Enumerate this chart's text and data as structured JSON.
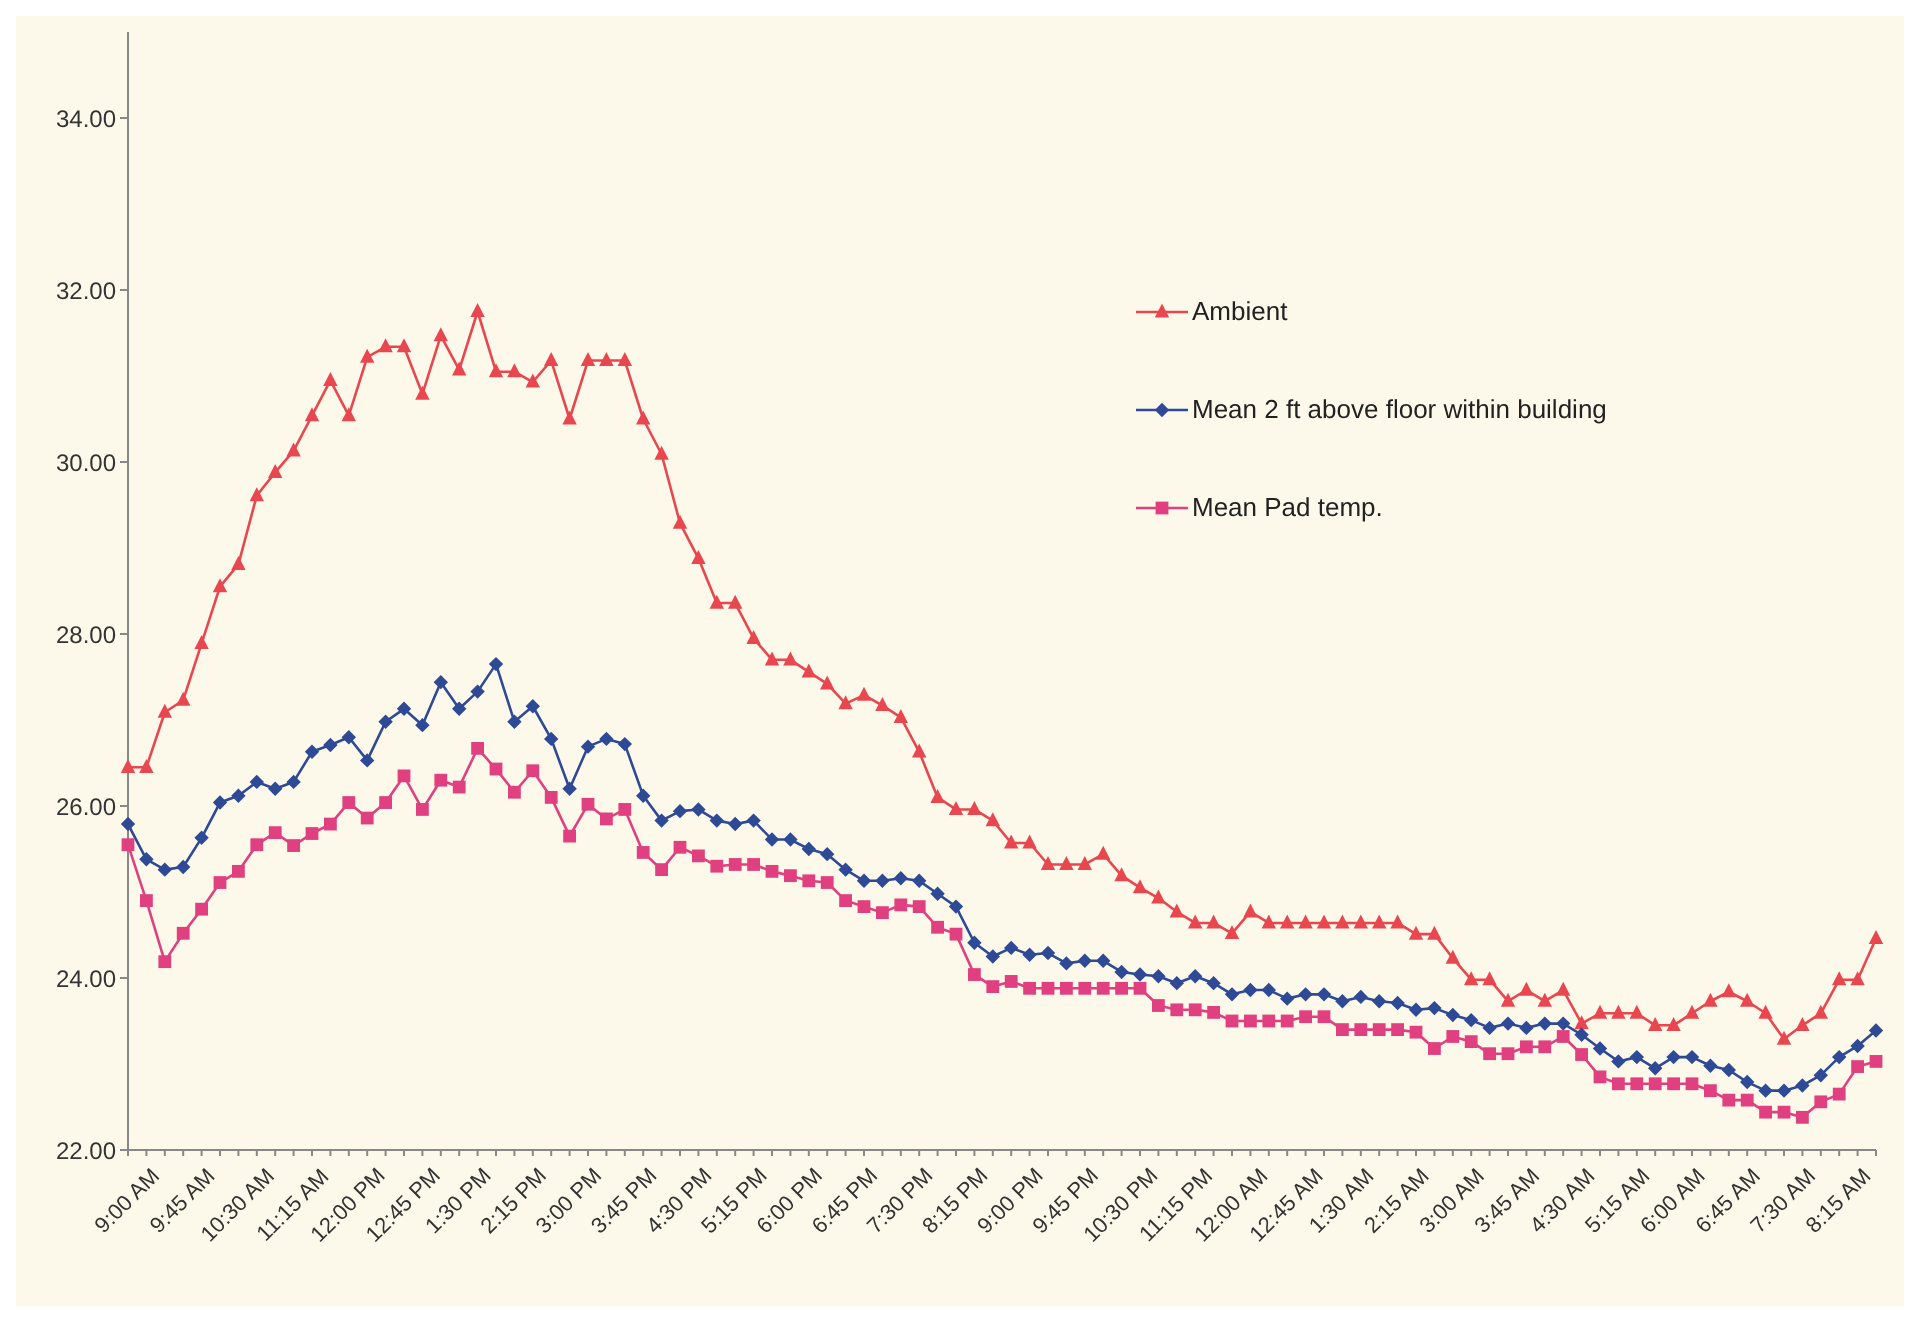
{
  "chart_data": {
    "type": "line",
    "categories": [
      "9:00 AM",
      null,
      null,
      "9:45 AM",
      null,
      null,
      "10:30 AM",
      null,
      null,
      "11:15 AM",
      null,
      null,
      "12:00 PM",
      null,
      null,
      "12:45 PM",
      null,
      null,
      "1:30 PM",
      null,
      null,
      "2:15 PM",
      null,
      null,
      "3:00 PM",
      null,
      null,
      "3:45 PM",
      null,
      null,
      "4:30 PM",
      null,
      null,
      "5:15 PM",
      null,
      null,
      "6:00 PM",
      null,
      null,
      "6:45 PM",
      null,
      null,
      "7:30 PM",
      null,
      null,
      "8:15 PM",
      null,
      null,
      "9:00 PM",
      null,
      null,
      "9:45 PM",
      null,
      null,
      "10:30 PM",
      null,
      null,
      "11:15 PM",
      null,
      null,
      "12:00 AM",
      null,
      null,
      "12:45 AM",
      null,
      null,
      "1:30 AM",
      null,
      null,
      "2:15 AM",
      null,
      null,
      "3:00 AM",
      null,
      null,
      "3:45 AM",
      null,
      null,
      "4:30 AM",
      null,
      null,
      "5:15 AM",
      null,
      null,
      "6:00 AM",
      null,
      null,
      "6:45 AM",
      null,
      null,
      "7:30 AM",
      null,
      null,
      "8:15 AM",
      null,
      null
    ],
    "series": [
      {
        "name": "Ambient",
        "color": "#e8474f",
        "marker": "triangle",
        "values": [
          26.45,
          26.45,
          27.09,
          27.23,
          27.89,
          28.55,
          28.81,
          29.61,
          29.88,
          30.13,
          30.54,
          30.95,
          30.54,
          31.22,
          31.34,
          31.34,
          30.79,
          31.47,
          31.07,
          31.75,
          31.05,
          31.05,
          30.93,
          31.18,
          30.5,
          31.18,
          31.18,
          31.18,
          30.5,
          30.09,
          29.29,
          28.88,
          28.36,
          28.36,
          27.95,
          27.7,
          27.7,
          27.56,
          27.42,
          27.19,
          27.29,
          27.17,
          27.03,
          26.63,
          26.1,
          25.96,
          25.96,
          25.83,
          25.57,
          25.57,
          25.32,
          25.32,
          25.32,
          25.44,
          25.19,
          25.05,
          24.93,
          24.77,
          24.64,
          24.64,
          24.52,
          24.77,
          24.64,
          24.64,
          24.64,
          24.64,
          24.64,
          24.64,
          24.64,
          24.64,
          24.51,
          24.51,
          24.23,
          23.98,
          23.98,
          23.73,
          23.86,
          23.73,
          23.86,
          23.47,
          23.59,
          23.59,
          23.59,
          23.45,
          23.45,
          23.59,
          23.73,
          23.84,
          23.73,
          23.59,
          23.29,
          23.45,
          23.59,
          23.98,
          23.98,
          24.46
        ]
      },
      {
        "name": "Mean 2 ft above floor within building",
        "color": "#2e4a96",
        "marker": "diamond",
        "values": [
          25.79,
          25.38,
          25.26,
          25.29,
          25.63,
          26.04,
          26.12,
          26.28,
          26.2,
          26.28,
          26.63,
          26.71,
          26.8,
          26.53,
          26.98,
          27.13,
          26.94,
          27.44,
          27.13,
          27.33,
          27.65,
          26.98,
          27.16,
          26.78,
          26.2,
          26.69,
          26.78,
          26.72,
          26.12,
          25.83,
          25.94,
          25.96,
          25.83,
          25.79,
          25.83,
          25.61,
          25.61,
          25.5,
          25.44,
          25.26,
          25.13,
          25.13,
          25.16,
          25.13,
          24.98,
          24.83,
          24.41,
          24.25,
          24.35,
          24.27,
          24.29,
          24.17,
          24.2,
          24.2,
          24.07,
          24.04,
          24.02,
          23.94,
          24.02,
          23.94,
          23.81,
          23.86,
          23.86,
          23.76,
          23.81,
          23.81,
          23.73,
          23.78,
          23.73,
          23.71,
          23.63,
          23.65,
          23.57,
          23.51,
          23.42,
          23.47,
          23.42,
          23.47,
          23.47,
          23.34,
          23.18,
          23.03,
          23.08,
          22.95,
          23.08,
          23.08,
          22.98,
          22.93,
          22.79,
          22.69,
          22.69,
          22.75,
          22.87,
          23.08,
          23.21,
          23.39
        ]
      },
      {
        "name": "Mean Pad temp.",
        "color": "#e0407f",
        "marker": "square",
        "values": [
          25.55,
          24.9,
          24.19,
          24.52,
          24.8,
          25.11,
          25.24,
          25.55,
          25.69,
          25.54,
          25.68,
          25.79,
          26.04,
          25.86,
          26.04,
          26.35,
          25.96,
          26.3,
          26.22,
          26.67,
          26.43,
          26.16,
          26.41,
          26.1,
          25.65,
          26.02,
          25.85,
          25.96,
          25.46,
          25.26,
          25.52,
          25.42,
          25.3,
          25.32,
          25.32,
          25.24,
          25.19,
          25.13,
          25.11,
          24.9,
          24.83,
          24.76,
          24.85,
          24.83,
          24.59,
          24.51,
          24.04,
          23.9,
          23.96,
          23.88,
          23.88,
          23.88,
          23.88,
          23.88,
          23.88,
          23.88,
          23.68,
          23.63,
          23.63,
          23.6,
          23.5,
          23.5,
          23.5,
          23.5,
          23.55,
          23.55,
          23.4,
          23.4,
          23.4,
          23.4,
          23.37,
          23.18,
          23.32,
          23.26,
          23.12,
          23.12,
          23.2,
          23.2,
          23.32,
          23.11,
          22.85,
          22.77,
          22.77,
          22.77,
          22.77,
          22.77,
          22.69,
          22.58,
          22.58,
          22.44,
          22.44,
          22.38,
          22.56,
          22.65,
          22.97,
          23.03
        ]
      }
    ],
    "ylim": [
      22,
      35
    ],
    "yticks": [
      {
        "value": 22,
        "label": "22.00"
      },
      {
        "value": 24,
        "label": "24.00"
      },
      {
        "value": 26,
        "label": "26.00"
      },
      {
        "value": 28,
        "label": "28.00"
      },
      {
        "value": 30,
        "label": "30.00"
      },
      {
        "value": 32,
        "label": "32.00"
      },
      {
        "value": 34,
        "label": "34.00"
      }
    ],
    "grid": false,
    "legend": "top right",
    "line_style": "solid"
  }
}
